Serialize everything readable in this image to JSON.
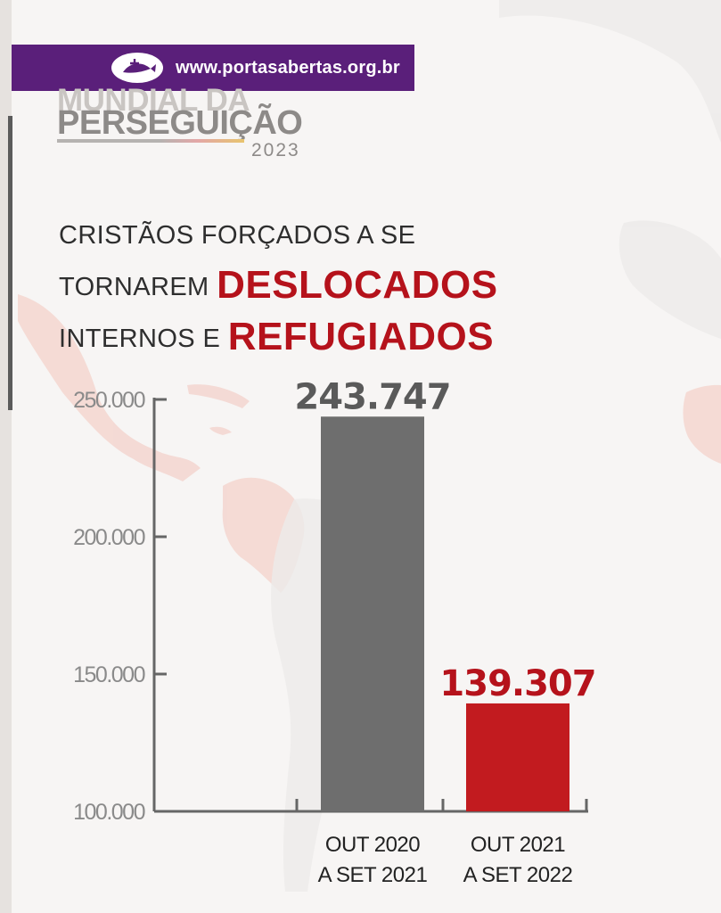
{
  "banner": {
    "url": "www.portasabertas.org.br"
  },
  "brand": {
    "line1": "MUNDIAL DA",
    "line2": "PERSEGUIÇÃO",
    "year": "2023"
  },
  "headline": {
    "line1": "CRISTÃOS FORÇADOS A SE",
    "line2_prefix": "TORNAREM ",
    "line2_highlight": "DESLOCADOS",
    "line3_prefix": "INTERNOS E ",
    "line3_highlight": "REFUGIADOS"
  },
  "chart_data": {
    "type": "bar",
    "categories": [
      [
        "OUT 2020",
        "A SET 2021"
      ],
      [
        "OUT 2021",
        "A SET 2022"
      ]
    ],
    "values": [
      243747,
      139307
    ],
    "value_labels": [
      "243.747",
      "139.307"
    ],
    "colors": [
      "#6e6e6e",
      "#c21b1f"
    ],
    "value_label_colors": [
      "#5a5a5a",
      "#b5121b"
    ],
    "ylim": [
      100000,
      250000
    ],
    "yticks": [
      100000,
      150000,
      200000,
      250000
    ],
    "ytick_labels": [
      "100.000",
      "150.000",
      "200.000",
      "250.000"
    ],
    "grid": false,
    "title": "",
    "xlabel": "",
    "ylabel": ""
  }
}
